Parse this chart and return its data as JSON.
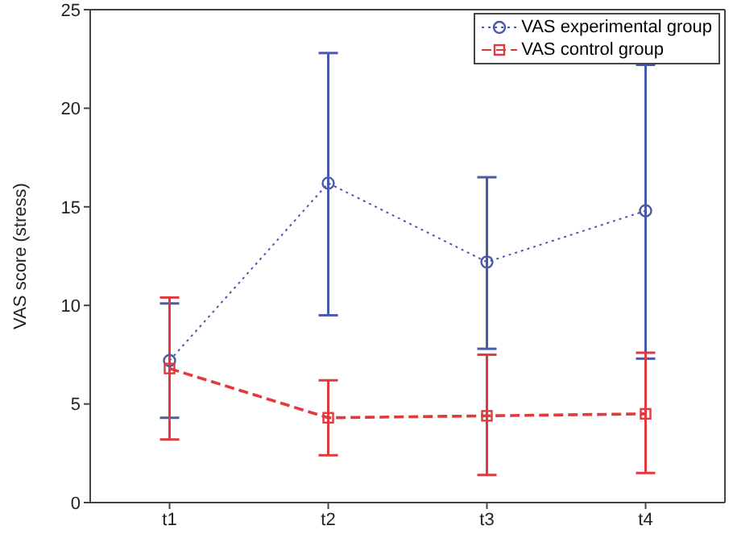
{
  "chart_data": {
    "type": "line",
    "ylabel": "VAS score (stress)",
    "categories": [
      "t1",
      "t2",
      "t3",
      "t4"
    ],
    "ylim": [
      0,
      25
    ],
    "yticks": [
      0,
      5,
      10,
      15,
      20,
      25
    ],
    "legend": "top right",
    "grid": false,
    "series": [
      {
        "name": "VAS experimental group",
        "color": "#4a5aaa",
        "values": [
          7.2,
          16.2,
          12.2,
          14.8
        ],
        "errors": [
          [
            4.3,
            10.1
          ],
          [
            9.5,
            22.8
          ],
          [
            7.8,
            16.5
          ],
          [
            7.3,
            22.2
          ]
        ],
        "marker": "circle",
        "line_style": "dotted"
      },
      {
        "name": "VAS control group",
        "color": "#e0393e",
        "values": [
          6.8,
          4.3,
          4.4,
          4.5
        ],
        "errors": [
          [
            3.2,
            10.4
          ],
          [
            2.4,
            6.2
          ],
          [
            1.4,
            7.5
          ],
          [
            1.5,
            7.6
          ]
        ],
        "marker": "square",
        "line_style": "dashed"
      }
    ]
  }
}
